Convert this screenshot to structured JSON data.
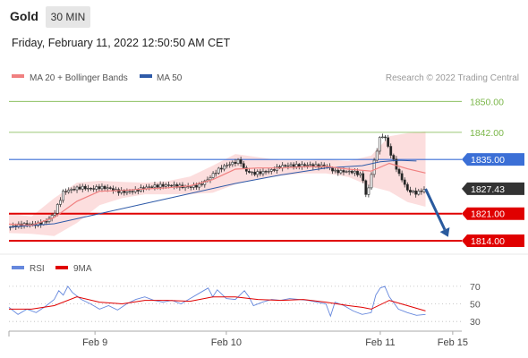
{
  "header": {
    "symbol": "Gold",
    "timeframe": "30 MIN",
    "datetime": "Friday, February 11, 2022 12:50:50 AM CET"
  },
  "colors": {
    "ma20": "#f08080",
    "ma50": "#2e5aa8",
    "resistance": "#7ab648",
    "pivot": "#3b6fd6",
    "support": "#e00000",
    "current": "#333333",
    "rsi": "#6688dd",
    "rsi_ma": "#e00000",
    "band_fill": "#fbd3d3",
    "arrow": "#2a5a9e"
  },
  "chart_data": [
    {
      "type": "candlestick",
      "legend": [
        {
          "label": "MA 20 + Bollinger Bands",
          "color": "#f08080"
        },
        {
          "label": "MA 50",
          "color": "#2e5aa8"
        }
      ],
      "legend_position": "top-left",
      "watermark": "Research © 2022 Trading Central",
      "ylim": [
        1811,
        1854
      ],
      "x_ticks": [
        {
          "label": "Feb 9",
          "x": 0.19
        },
        {
          "label": "Feb 10",
          "x": 0.48
        },
        {
          "label": "Feb 11",
          "x": 0.82
        },
        {
          "label": "Feb 15",
          "x": 0.98
        }
      ],
      "levels": [
        {
          "label": "1850.00",
          "value": 1850.0,
          "kind": "resistance"
        },
        {
          "label": "1842.00",
          "value": 1842.0,
          "kind": "resistance"
        },
        {
          "label": "1835.00",
          "value": 1835.0,
          "kind": "pivot"
        },
        {
          "label": "1827.43",
          "value": 1827.43,
          "kind": "current"
        },
        {
          "label": "1821.00",
          "value": 1821.0,
          "kind": "support"
        },
        {
          "label": "1814.00",
          "value": 1814.0,
          "kind": "support"
        }
      ],
      "price_path": [
        [
          0.0,
          1817.5
        ],
        [
          0.02,
          1818.0
        ],
        [
          0.04,
          1818.3
        ],
        [
          0.06,
          1818.2
        ],
        [
          0.08,
          1818.8
        ],
        [
          0.1,
          1821.0
        ],
        [
          0.12,
          1826.6
        ],
        [
          0.14,
          1827.3
        ],
        [
          0.16,
          1827.8
        ],
        [
          0.18,
          1827.4
        ],
        [
          0.2,
          1827.8
        ],
        [
          0.22,
          1827.6
        ],
        [
          0.24,
          1826.8
        ],
        [
          0.26,
          1826.6
        ],
        [
          0.28,
          1827.0
        ],
        [
          0.3,
          1827.7
        ],
        [
          0.32,
          1828.1
        ],
        [
          0.34,
          1828.3
        ],
        [
          0.36,
          1828.3
        ],
        [
          0.38,
          1828.0
        ],
        [
          0.4,
          1827.9
        ],
        [
          0.42,
          1828.3
        ],
        [
          0.44,
          1829.9
        ],
        [
          0.46,
          1832.2
        ],
        [
          0.48,
          1833.5
        ],
        [
          0.5,
          1834.3
        ],
        [
          0.51,
          1834.8
        ],
        [
          0.52,
          1832.2
        ],
        [
          0.54,
          1831.4
        ],
        [
          0.56,
          1831.7
        ],
        [
          0.58,
          1832.2
        ],
        [
          0.6,
          1833.2
        ],
        [
          0.62,
          1833.5
        ],
        [
          0.64,
          1833.4
        ],
        [
          0.66,
          1833.6
        ],
        [
          0.68,
          1833.3
        ],
        [
          0.7,
          1833.4
        ],
        [
          0.72,
          1831.9
        ],
        [
          0.74,
          1831.9
        ],
        [
          0.76,
          1831.8
        ],
        [
          0.78,
          1830.9
        ],
        [
          0.79,
          1824.8
        ],
        [
          0.8,
          1831.2
        ],
        [
          0.81,
          1836.2
        ],
        [
          0.82,
          1841.0
        ],
        [
          0.83,
          1841.0
        ],
        [
          0.84,
          1837.2
        ],
        [
          0.85,
          1834.6
        ],
        [
          0.86,
          1831.4
        ],
        [
          0.87,
          1829.5
        ],
        [
          0.88,
          1827.0
        ],
        [
          0.9,
          1826.3
        ],
        [
          0.92,
          1827.4
        ]
      ],
      "ma20": [
        [
          0.0,
          1818.3
        ],
        [
          0.05,
          1818.0
        ],
        [
          0.1,
          1820.0
        ],
        [
          0.15,
          1824.2
        ],
        [
          0.2,
          1826.8
        ],
        [
          0.25,
          1827.0
        ],
        [
          0.3,
          1827.4
        ],
        [
          0.35,
          1827.7
        ],
        [
          0.4,
          1828.2
        ],
        [
          0.45,
          1829.8
        ],
        [
          0.5,
          1832.5
        ],
        [
          0.55,
          1832.8
        ],
        [
          0.6,
          1832.8
        ],
        [
          0.65,
          1833.1
        ],
        [
          0.7,
          1833.2
        ],
        [
          0.75,
          1832.5
        ],
        [
          0.8,
          1832.0
        ],
        [
          0.84,
          1834.0
        ],
        [
          0.88,
          1832.6
        ],
        [
          0.92,
          1831.5
        ]
      ],
      "bb_upper": [
        [
          0.0,
          1821.0
        ],
        [
          0.05,
          1820.3
        ],
        [
          0.1,
          1825.0
        ],
        [
          0.15,
          1829.0
        ],
        [
          0.2,
          1829.5
        ],
        [
          0.25,
          1829.2
        ],
        [
          0.3,
          1829.0
        ],
        [
          0.35,
          1829.4
        ],
        [
          0.4,
          1830.6
        ],
        [
          0.45,
          1833.4
        ],
        [
          0.5,
          1836.4
        ],
        [
          0.55,
          1835.6
        ],
        [
          0.6,
          1834.8
        ],
        [
          0.65,
          1834.8
        ],
        [
          0.7,
          1835.0
        ],
        [
          0.75,
          1834.6
        ],
        [
          0.8,
          1836.0
        ],
        [
          0.84,
          1841.0
        ],
        [
          0.88,
          1841.8
        ],
        [
          0.92,
          1842.2
        ]
      ],
      "bb_lower": [
        [
          0.0,
          1816.0
        ],
        [
          0.05,
          1815.8
        ],
        [
          0.1,
          1815.2
        ],
        [
          0.15,
          1818.6
        ],
        [
          0.2,
          1823.2
        ],
        [
          0.25,
          1825.0
        ],
        [
          0.3,
          1826.0
        ],
        [
          0.35,
          1826.0
        ],
        [
          0.4,
          1826.1
        ],
        [
          0.45,
          1826.4
        ],
        [
          0.5,
          1828.6
        ],
        [
          0.55,
          1830.0
        ],
        [
          0.6,
          1830.8
        ],
        [
          0.65,
          1831.4
        ],
        [
          0.7,
          1831.4
        ],
        [
          0.75,
          1830.5
        ],
        [
          0.8,
          1828.0
        ],
        [
          0.84,
          1826.8
        ],
        [
          0.88,
          1824.0
        ],
        [
          0.92,
          1822.8
        ]
      ],
      "ma50": [
        [
          0.0,
          1817.5
        ],
        [
          0.1,
          1818.4
        ],
        [
          0.2,
          1821.0
        ],
        [
          0.3,
          1823.6
        ],
        [
          0.4,
          1826.2
        ],
        [
          0.5,
          1828.8
        ],
        [
          0.6,
          1831.0
        ],
        [
          0.7,
          1832.8
        ],
        [
          0.78,
          1833.4
        ],
        [
          0.82,
          1834.4
        ],
        [
          0.86,
          1834.8
        ],
        [
          0.9,
          1834.6
        ]
      ],
      "forecast_arrow": {
        "from": [
          0.92,
          1827.4
        ],
        "to": [
          0.97,
          1815.0
        ]
      }
    },
    {
      "type": "line",
      "legend": [
        {
          "label": "RSI",
          "color": "#6688dd"
        },
        {
          "label": "9MA",
          "color": "#e00000"
        }
      ],
      "ylim": [
        20,
        78
      ],
      "y_ticks": [
        {
          "label": "70",
          "value": 70
        },
        {
          "label": "50",
          "value": 50
        },
        {
          "label": "30",
          "value": 30
        }
      ],
      "rsi": [
        [
          0.0,
          46
        ],
        [
          0.02,
          38
        ],
        [
          0.04,
          44
        ],
        [
          0.06,
          40
        ],
        [
          0.08,
          47
        ],
        [
          0.1,
          55
        ],
        [
          0.11,
          65
        ],
        [
          0.12,
          60
        ],
        [
          0.13,
          70
        ],
        [
          0.14,
          63
        ],
        [
          0.16,
          55
        ],
        [
          0.18,
          50
        ],
        [
          0.2,
          44
        ],
        [
          0.22,
          48
        ],
        [
          0.24,
          43
        ],
        [
          0.26,
          50
        ],
        [
          0.28,
          55
        ],
        [
          0.3,
          58
        ],
        [
          0.32,
          54
        ],
        [
          0.34,
          52
        ],
        [
          0.36,
          54
        ],
        [
          0.38,
          50
        ],
        [
          0.4,
          56
        ],
        [
          0.42,
          62
        ],
        [
          0.44,
          68
        ],
        [
          0.45,
          58
        ],
        [
          0.46,
          66
        ],
        [
          0.48,
          56
        ],
        [
          0.5,
          55
        ],
        [
          0.52,
          65
        ],
        [
          0.53,
          58
        ],
        [
          0.54,
          48
        ],
        [
          0.56,
          52
        ],
        [
          0.58,
          55
        ],
        [
          0.6,
          54
        ],
        [
          0.62,
          56
        ],
        [
          0.64,
          55
        ],
        [
          0.66,
          54
        ],
        [
          0.68,
          52
        ],
        [
          0.7,
          50
        ],
        [
          0.71,
          36
        ],
        [
          0.72,
          52
        ],
        [
          0.74,
          48
        ],
        [
          0.76,
          42
        ],
        [
          0.78,
          38
        ],
        [
          0.8,
          40
        ],
        [
          0.81,
          60
        ],
        [
          0.82,
          68
        ],
        [
          0.83,
          70
        ],
        [
          0.84,
          58
        ],
        [
          0.86,
          44
        ],
        [
          0.88,
          40
        ],
        [
          0.9,
          37
        ],
        [
          0.92,
          38
        ]
      ],
      "rsi_ma": [
        [
          0.0,
          44
        ],
        [
          0.05,
          44
        ],
        [
          0.1,
          48
        ],
        [
          0.15,
          58
        ],
        [
          0.2,
          52
        ],
        [
          0.25,
          50
        ],
        [
          0.3,
          54
        ],
        [
          0.35,
          54
        ],
        [
          0.4,
          53
        ],
        [
          0.45,
          58
        ],
        [
          0.5,
          58
        ],
        [
          0.55,
          55
        ],
        [
          0.6,
          54
        ],
        [
          0.65,
          55
        ],
        [
          0.7,
          52
        ],
        [
          0.75,
          48
        ],
        [
          0.78,
          46
        ],
        [
          0.8,
          44
        ],
        [
          0.84,
          54
        ],
        [
          0.88,
          48
        ],
        [
          0.92,
          42
        ]
      ]
    }
  ]
}
